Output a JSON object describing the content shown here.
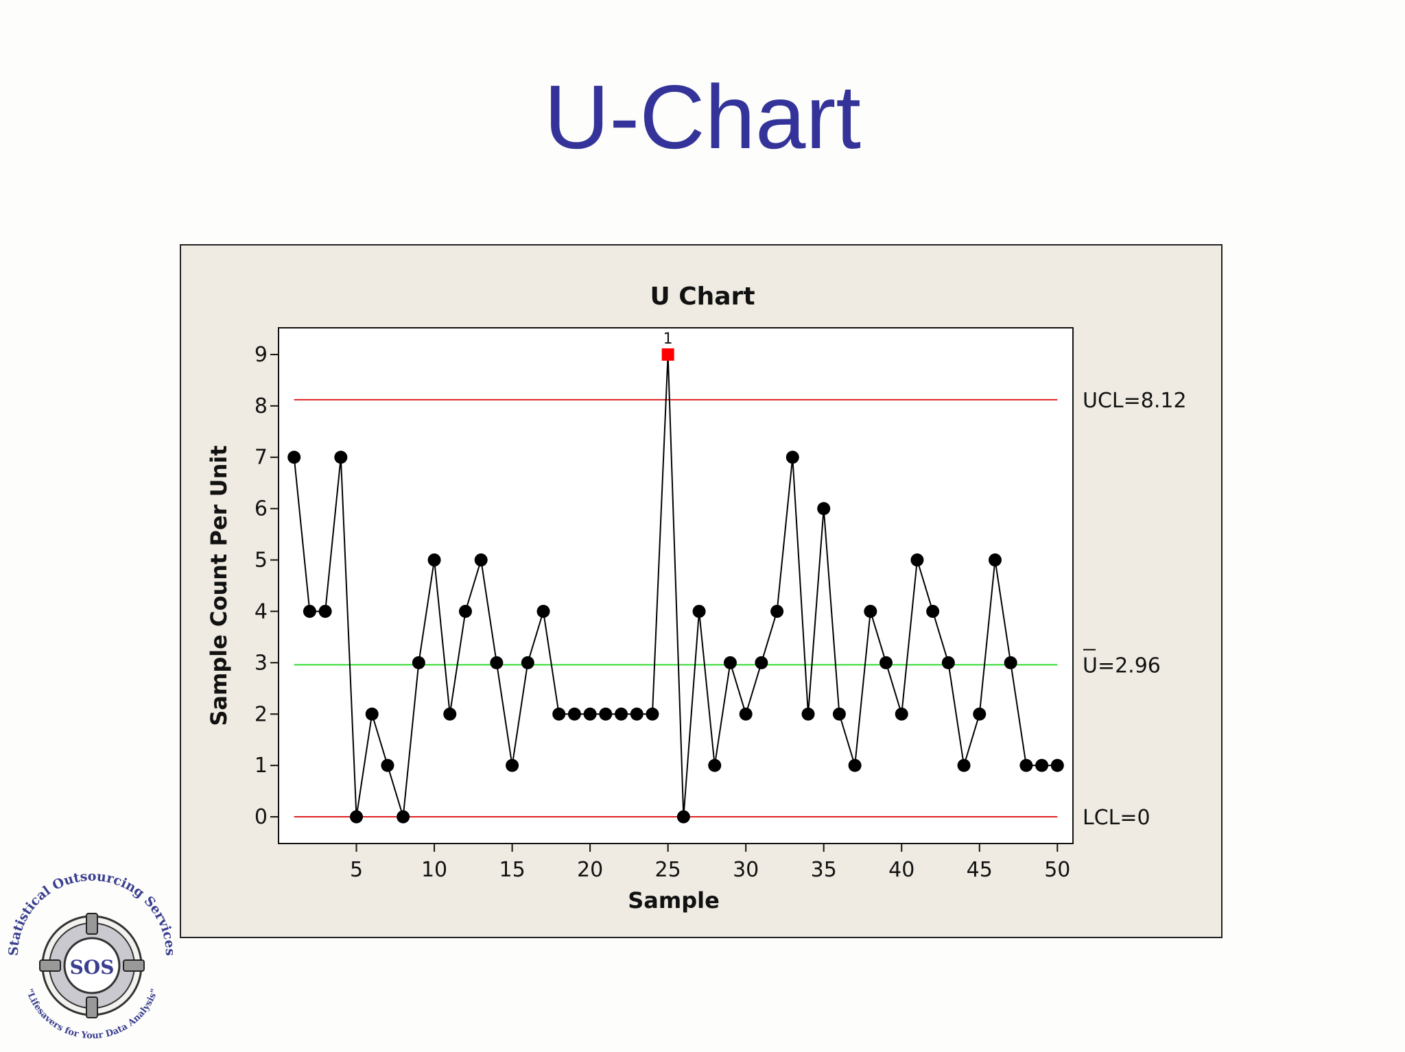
{
  "slide": {
    "title": "U-Chart"
  },
  "chart_data": {
    "type": "line",
    "title": "U Chart",
    "xlabel": "Sample",
    "ylabel": "Sample Count Per Unit",
    "x": [
      1,
      2,
      3,
      4,
      5,
      6,
      7,
      8,
      9,
      10,
      11,
      12,
      13,
      14,
      15,
      16,
      17,
      18,
      19,
      20,
      21,
      22,
      23,
      24,
      25,
      26,
      27,
      28,
      29,
      30,
      31,
      32,
      33,
      34,
      35,
      36,
      37,
      38,
      39,
      40,
      41,
      42,
      43,
      44,
      45,
      46,
      47,
      48,
      49,
      50
    ],
    "values": [
      7,
      4,
      4,
      7,
      0,
      2,
      1,
      0,
      3,
      5,
      2,
      4,
      5,
      3,
      1,
      3,
      4,
      2,
      2,
      2,
      2,
      2,
      2,
      2,
      9,
      0,
      4,
      1,
      3,
      2,
      3,
      4,
      7,
      2,
      6,
      2,
      1,
      4,
      3,
      2,
      5,
      4,
      3,
      1,
      2,
      5,
      3,
      1,
      1,
      1
    ],
    "xlim": [
      0,
      51
    ],
    "ylim": [
      -0.52,
      9.52
    ],
    "xticks": [
      5,
      10,
      15,
      20,
      25,
      30,
      35,
      40,
      45,
      50
    ],
    "yticks": [
      0,
      1,
      2,
      3,
      4,
      5,
      6,
      7,
      8,
      9
    ],
    "grid": false,
    "reference_lines": [
      {
        "label": "UCL=8.12",
        "value": 8.12,
        "color": "#e02020"
      },
      {
        "label": "U=2.96",
        "value": 2.96,
        "color": "#33dd33"
      },
      {
        "label": "LCL=0",
        "value": 0,
        "color": "#e02020"
      }
    ],
    "out_of_control": [
      {
        "x": 25,
        "value": 9,
        "flag": "1",
        "color": "#ff0000"
      }
    ],
    "point_color": "#000000",
    "line_color": "#000000"
  },
  "logo": {
    "top_text": "Statistical Outsourcing Services",
    "center_text": "SOS",
    "bottom_text": "\"Lifesavers for Your Data Analysis\""
  }
}
